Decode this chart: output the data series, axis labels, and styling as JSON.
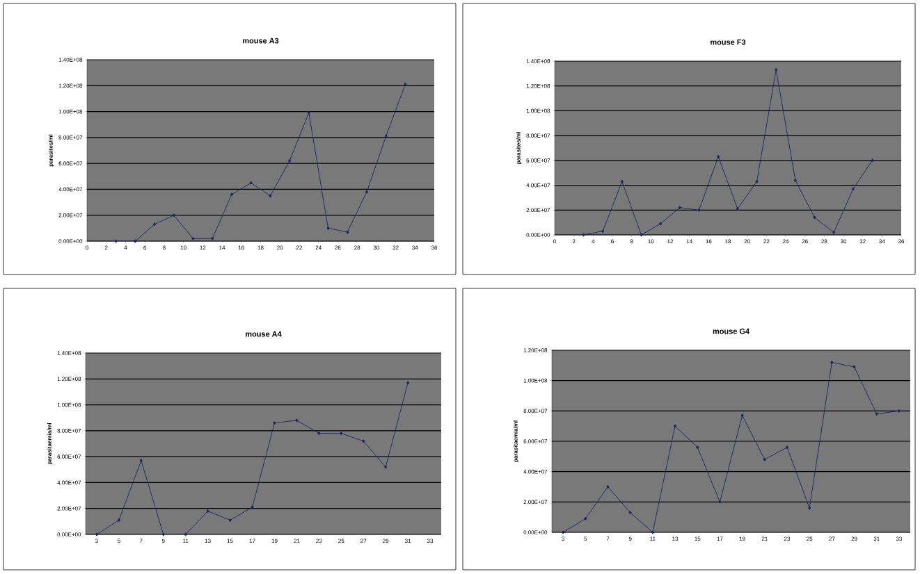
{
  "chart_data": [
    {
      "type": "line",
      "title": "mouse A3",
      "ylabel": "parasites/ml",
      "x": [
        3,
        5,
        7,
        9,
        11,
        13,
        15,
        17,
        19,
        21,
        23,
        25,
        27,
        29,
        31,
        33
      ],
      "values": [
        0,
        0,
        13000000,
        20000000,
        2000000,
        2000000,
        36000000,
        45000000,
        35000000,
        62000000,
        99000000,
        10000000,
        7000000,
        38000000,
        81000000,
        121000000
      ],
      "color": "#1c2461",
      "marker": "diamond",
      "grid": "y",
      "xlim": [
        0,
        36
      ],
      "xticks": [
        0,
        2,
        4,
        6,
        8,
        10,
        12,
        14,
        16,
        18,
        20,
        22,
        24,
        26,
        28,
        30,
        32,
        34,
        36
      ],
      "ylim": [
        0,
        140000000
      ],
      "yticks": [
        {
          "value": 0,
          "label": "0.00E+00"
        },
        {
          "value": 20000000,
          "label": "2.00E+07"
        },
        {
          "value": 40000000,
          "label": "4.00E+07"
        },
        {
          "value": 60000000,
          "label": "6.00E+07"
        },
        {
          "value": 80000000,
          "label": "8.00E+07"
        },
        {
          "value": 100000000,
          "label": "1.00E+08"
        },
        {
          "value": 120000000,
          "label": "1.20E+08"
        },
        {
          "value": 140000000,
          "label": "1.40E+08"
        }
      ]
    },
    {
      "type": "line",
      "title": "mouse F3",
      "ylabel": "parasites/ml",
      "x": [
        3,
        5,
        7,
        9,
        11,
        13,
        15,
        17,
        19,
        21,
        23,
        25,
        27,
        29,
        31,
        33
      ],
      "values": [
        0,
        3000000,
        43000000,
        0,
        9000000,
        22000000,
        20000000,
        63000000,
        21000000,
        43000000,
        133000000,
        44000000,
        14000000,
        2000000,
        37000000,
        60000000
      ],
      "color": "#1c2461",
      "marker": "diamond",
      "grid": "y",
      "xlim": [
        0,
        36
      ],
      "xticks": [
        0,
        2,
        4,
        6,
        8,
        10,
        12,
        14,
        16,
        18,
        20,
        22,
        24,
        26,
        28,
        30,
        32,
        34,
        36
      ],
      "ylim": [
        0,
        140000000
      ],
      "yticks": [
        {
          "value": 0,
          "label": "0.00E+00"
        },
        {
          "value": 20000000,
          "label": "2.00E+07"
        },
        {
          "value": 40000000,
          "label": "4.00E+07"
        },
        {
          "value": 60000000,
          "label": "6.00E+07"
        },
        {
          "value": 80000000,
          "label": "8.00E+07"
        },
        {
          "value": 100000000,
          "label": "1.00E+08"
        },
        {
          "value": 120000000,
          "label": "1.20E+08"
        },
        {
          "value": 140000000,
          "label": "1.40E+08"
        }
      ]
    },
    {
      "type": "line",
      "title": "mouse A4",
      "ylabel": "parasitaemia/ml",
      "categories": [
        "3",
        "5",
        "7",
        "9",
        "11",
        "13",
        "15",
        "17",
        "19",
        "21",
        "23",
        "25",
        "27",
        "29",
        "31",
        "33"
      ],
      "values": [
        0,
        11000000,
        57000000,
        0,
        0,
        18000000,
        11000000,
        21000000,
        86000000,
        88000000,
        78000000,
        78000000,
        72000000,
        52000000,
        117000000,
        null
      ],
      "color": "#1c2461",
      "marker": "diamond",
      "grid": "y",
      "ylim": [
        0,
        140000000
      ],
      "yticks": [
        {
          "value": 0,
          "label": "0.00E+00"
        },
        {
          "value": 20000000,
          "label": "2.00E+07"
        },
        {
          "value": 40000000,
          "label": "4.00E+07"
        },
        {
          "value": 60000000,
          "label": "6.00E+07"
        },
        {
          "value": 80000000,
          "label": "8.00E+07"
        },
        {
          "value": 100000000,
          "label": "1.00E+08"
        },
        {
          "value": 120000000,
          "label": "1.20E+08"
        },
        {
          "value": 140000000,
          "label": "1.40E+08"
        }
      ]
    },
    {
      "type": "line",
      "title": "mouse G4",
      "ylabel": "parasitaemia/ml",
      "categories": [
        "3",
        "5",
        "7",
        "9",
        "11",
        "13",
        "15",
        "17",
        "19",
        "21",
        "23",
        "25",
        "27",
        "29",
        "31",
        "33"
      ],
      "values": [
        0,
        9000000,
        30000000,
        13000000,
        0,
        70000000,
        56000000,
        20000000,
        77000000,
        48000000,
        56000000,
        16000000,
        112000000,
        109000000,
        78000000,
        80000000
      ],
      "color": "#1c2461",
      "marker": "diamond",
      "grid": "y",
      "ylim": [
        0,
        120000000
      ],
      "yticks": [
        {
          "value": 0,
          "label": "0.00E+00"
        },
        {
          "value": 20000000,
          "label": "2.00E+07"
        },
        {
          "value": 40000000,
          "label": "4.00E+07"
        },
        {
          "value": 60000000,
          "label": "6.00E+07"
        },
        {
          "value": 80000000,
          "label": "8.00E+07"
        },
        {
          "value": 100000000,
          "label": "1.00E+08"
        },
        {
          "value": 120000000,
          "label": "1.20E+08"
        }
      ]
    }
  ]
}
